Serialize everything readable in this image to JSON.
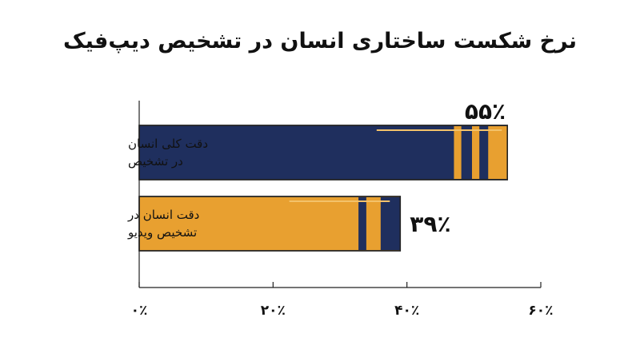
{
  "chart_data": {
    "type": "bar",
    "orientation": "horizontal",
    "title": "نرخ شکست ساختاری انسان در تشخیص دیپ‌فیک",
    "categories": [
      [
        "دقت کلی انسان",
        "در تشخیص"
      ],
      [
        "دقت انسان در",
        "تشخیص ویدیو"
      ]
    ],
    "values": [
      55,
      39
    ],
    "value_labels": [
      "۵۵٪",
      "۳۹٪"
    ],
    "tick_values": [
      0,
      20,
      40,
      60
    ],
    "tick_labels": [
      "۰٪",
      "۲۰٪",
      "۴۰٪",
      "۶۰٪"
    ],
    "xlim": [
      0,
      60
    ],
    "grid": false,
    "colors": {
      "bar_primary": "#1f2f5e",
      "bar_secondary": "#e8a030",
      "axis": "#222222",
      "accent_line": "#f3c26a"
    }
  }
}
